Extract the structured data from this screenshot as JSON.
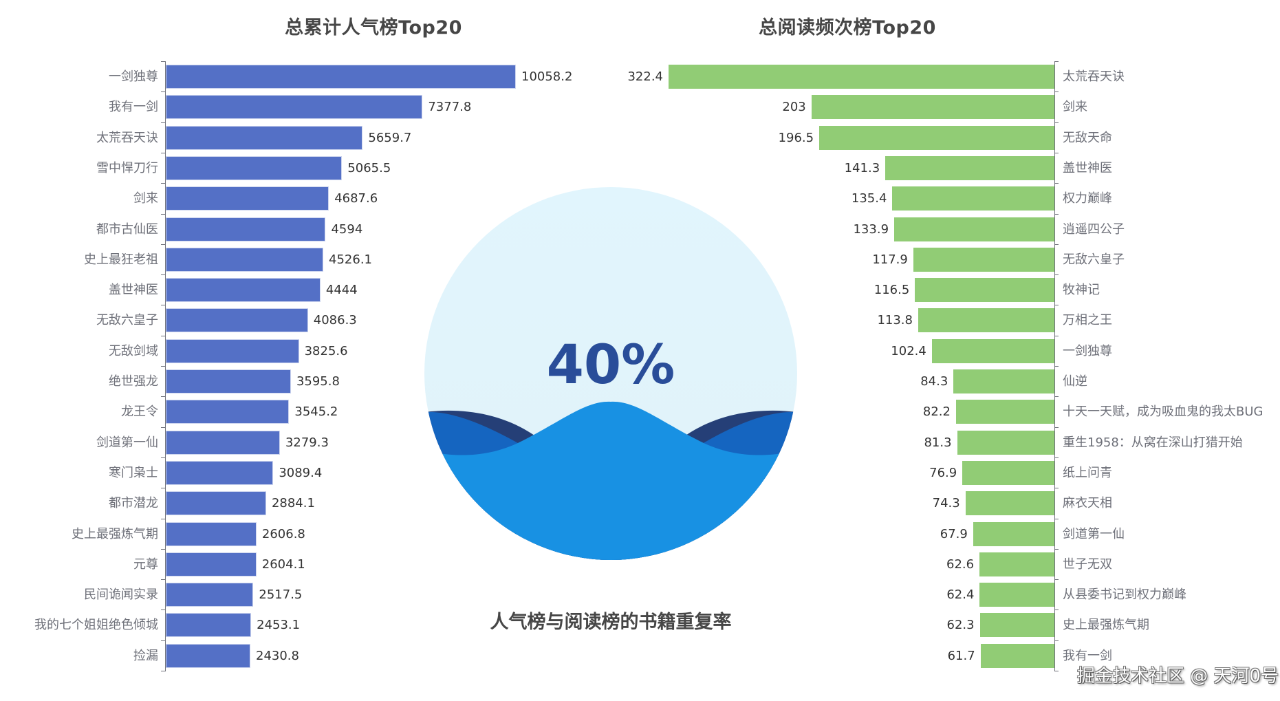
{
  "chart_data": [
    {
      "type": "bar",
      "orientation": "horizontal",
      "title": "总累计人气榜Top20",
      "color": "#5470c6",
      "categories": [
        "一剑独尊",
        "我有一剑",
        "太荒吞天诀",
        "雪中悍刀行",
        "剑来",
        "都市古仙医",
        "史上最狂老祖",
        "盖世神医",
        "无敌六皇子",
        "无敌剑域",
        "绝世强龙",
        "龙王令",
        "剑道第一仙",
        "寒门枭士",
        "都市潜龙",
        "史上最强炼气期",
        "元尊",
        "民间诡闻实录",
        "我的七个姐姐绝色倾城",
        "捡漏"
      ],
      "values": [
        10058.2,
        7377.8,
        5659.7,
        5065.5,
        4687.6,
        4594,
        4526.1,
        4444,
        4086.3,
        3825.6,
        3595.8,
        3545.2,
        3279.3,
        3089.4,
        2884.1,
        2606.8,
        2604.1,
        2517.5,
        2453.1,
        2430.8
      ],
      "xlabel": "",
      "ylabel": "",
      "grid": false,
      "legend": "none"
    },
    {
      "type": "bar",
      "orientation": "horizontal-reversed",
      "title": "总阅读频次榜Top20",
      "color": "#91cc75",
      "categories": [
        "太荒吞天诀",
        "剑来",
        "无敌天命",
        "盖世神医",
        "权力巅峰",
        "逍遥四公子",
        "无敌六皇子",
        "牧神记",
        "万相之王",
        "一剑独尊",
        "仙逆",
        "十天一天赋，成为吸血鬼的我太BUG",
        "重生1958：从窝在深山打猎开始",
        "纸上问青",
        "麻衣天相",
        "剑道第一仙",
        "世子无双",
        "从县委书记到权力巅峰",
        "史上最强炼气期",
        "我有一剑"
      ],
      "values": [
        322.4,
        203,
        196.5,
        141.3,
        135.4,
        133.9,
        117.9,
        116.5,
        113.8,
        102.4,
        84.3,
        82.2,
        81.3,
        76.9,
        74.3,
        67.9,
        62.6,
        62.4,
        62.3,
        61.7
      ],
      "xlabel": "",
      "ylabel": "",
      "grid": false,
      "legend": "none"
    },
    {
      "type": "liquidfill",
      "title": "人气榜与阅读榜的书籍重复率",
      "value": 0.4,
      "label": "40%",
      "colors": [
        "#1890e6",
        "#1565c0",
        "#294d99"
      ]
    }
  ],
  "left_chart": {
    "title": "总累计人气榜Top20"
  },
  "right_chart": {
    "title": "总阅读频次榜Top20"
  },
  "gauge": {
    "label": "40%",
    "subtitle": "人气榜与阅读榜的书籍重复率"
  },
  "watermark": "掘金技术社区 @ 天河0号"
}
